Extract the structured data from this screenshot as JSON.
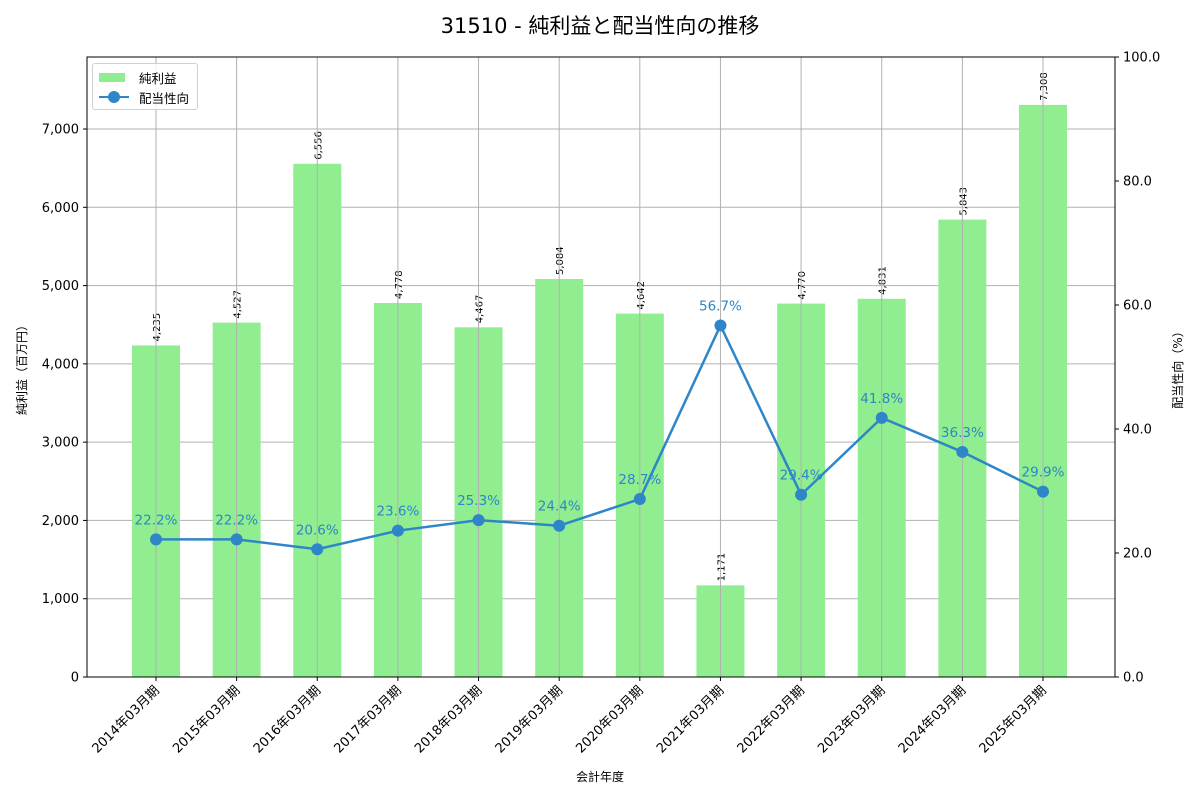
{
  "chart_data": {
    "type": "bar+line",
    "title": "31510 - 純利益と配当性向の推移",
    "xlabel": "会計年度",
    "ylabel": "純利益（百万円）",
    "ylabel_right": "配当性向（%）",
    "categories": [
      "2014年03月期",
      "2015年03月期",
      "2016年03月期",
      "2017年03月期",
      "2018年03月期",
      "2019年03月期",
      "2020年03月期",
      "2021年03月期",
      "2022年03月期",
      "2023年03月期",
      "2024年03月期",
      "2025年03月期"
    ],
    "series": [
      {
        "name": "純利益",
        "type": "bar",
        "axis": "left",
        "color": "#90ee90",
        "values": [
          4235,
          4527,
          6556,
          4778,
          4467,
          5084,
          4642,
          1171,
          4770,
          4831,
          5843,
          7308
        ],
        "labels": [
          "4,235",
          "4,527",
          "6,556",
          "4,778",
          "4,467",
          "5,084",
          "4,642",
          "1,171",
          "4,770",
          "4,831",
          "5,843",
          "7,308"
        ]
      },
      {
        "name": "配当性向",
        "type": "line",
        "axis": "right",
        "color": "#2e86c8",
        "values": [
          22.2,
          22.2,
          20.6,
          23.6,
          25.3,
          24.4,
          28.7,
          56.7,
          29.4,
          41.8,
          36.3,
          29.9
        ],
        "labels": [
          "22.2%",
          "22.2%",
          "20.6%",
          "23.6%",
          "25.3%",
          "24.4%",
          "28.7%",
          "56.7%",
          "29.4%",
          "41.8%",
          "36.3%",
          "29.9%"
        ]
      }
    ],
    "ylim": [
      0,
      7920
    ],
    "ylim_right": [
      0,
      100
    ],
    "yticks": [
      "0",
      "1,000",
      "2,000",
      "3,000",
      "4,000",
      "5,000",
      "6,000",
      "7,000"
    ],
    "yticks_right": [
      "0.0",
      "20.0",
      "40.0",
      "60.0",
      "80.0",
      "100.0"
    ],
    "grid": true,
    "legend_position": "upper left"
  },
  "legend": {
    "bar_label": "純利益",
    "line_label": "配当性向"
  }
}
